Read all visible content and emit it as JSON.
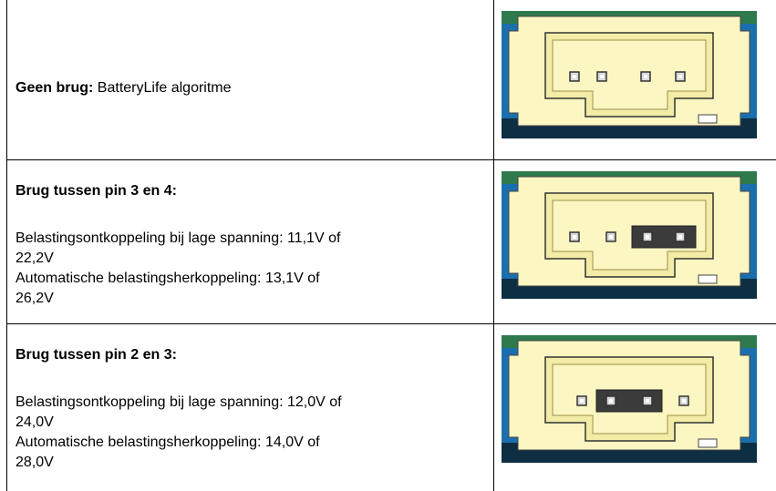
{
  "rows": [
    {
      "label": "Geen brug:",
      "text": "BatteryLife algoritme"
    },
    {
      "label": "Brug tussen pin 3 en 4:",
      "lines": [
        "Belastingsontkoppeling bij lage spanning: 11,1V of",
        "22,2V",
        "Automatische belastingsherkoppeling: 13,1V of",
        "26,2V"
      ]
    },
    {
      "label": "Brug tussen pin 2 en 3:",
      "lines": [
        "Belastingsontkoppeling bij lage spanning: 12,0V of",
        "24,0V",
        "Automatische belastingsherkoppeling: 14,0V of",
        "28,0V"
      ]
    }
  ]
}
